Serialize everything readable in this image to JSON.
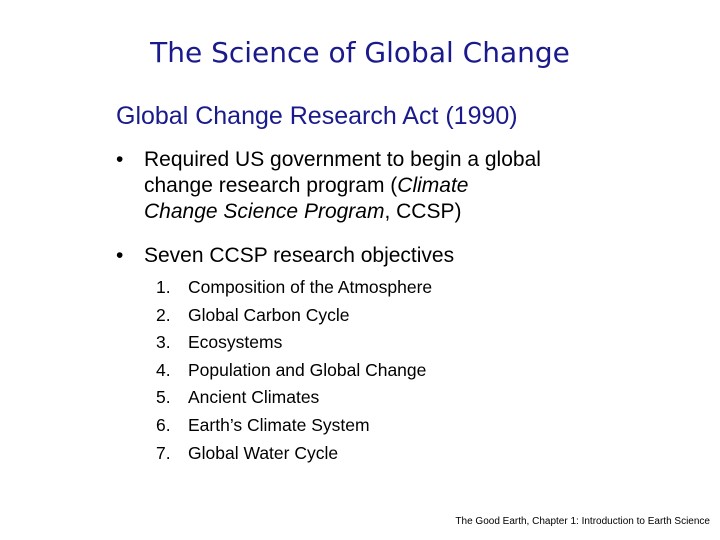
{
  "slide": {
    "title": "The Science of Global Change",
    "subtitle": "Global Change Research Act (1990)",
    "bullets": [
      {
        "symbol": "•",
        "line1": "Required US government to begin a global",
        "line2": "change research program (",
        "line2_italic": "Climate",
        "line3_italic": "Change Science Program",
        "line3_rest": ", CCSP)"
      },
      {
        "symbol": "•",
        "text": "Seven CCSP research objectives"
      }
    ],
    "objectives": [
      {
        "num": "1.",
        "text": "Composition of the Atmosphere"
      },
      {
        "num": "2.",
        "text": "Global Carbon Cycle"
      },
      {
        "num": "3.",
        "text": "Ecosystems"
      },
      {
        "num": "4.",
        "text": "Population and Global Change"
      },
      {
        "num": "5.",
        "text": "Ancient Climates"
      },
      {
        "num": "6.",
        "text": "Earth’s Climate System"
      },
      {
        "num": "7.",
        "text": "Global Water Cycle"
      }
    ],
    "footer": "The Good Earth, Chapter 1: Introduction to Earth Science"
  }
}
